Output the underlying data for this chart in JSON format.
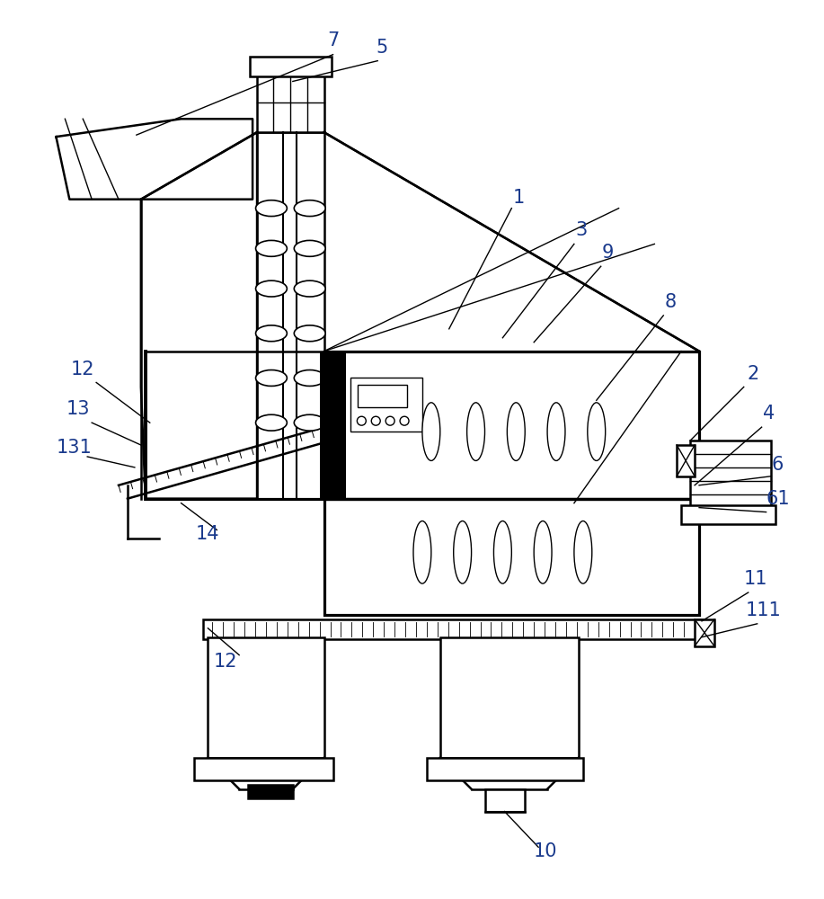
{
  "bg_color": "#ffffff",
  "lc": "#000000",
  "label_color": "#1a3a8c",
  "figsize": [
    9.17,
    10.0
  ],
  "dpi": 100,
  "lw_main": 1.8,
  "lw_thin": 1.0,
  "label_fs": 15
}
